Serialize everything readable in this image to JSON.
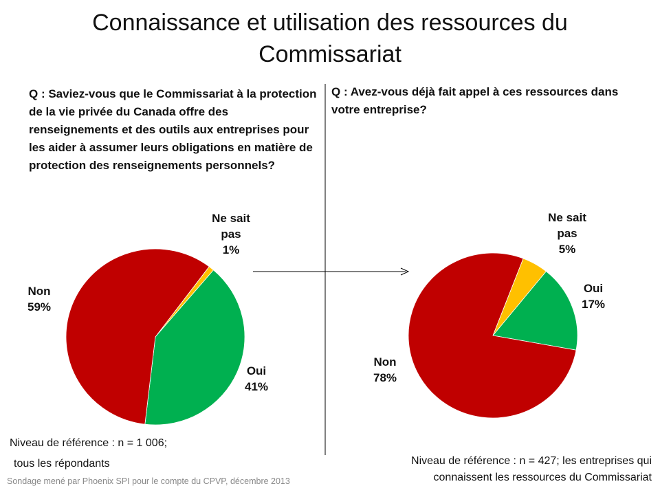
{
  "title": "Connaissance et utilisation des ressources du Commissariat",
  "source": "Sondage mené par Phoenix SPI pour le compte du CPVP, décembre 2013",
  "chart_data": [
    {
      "type": "pie",
      "title": "Q : Saviez-vous que le Commissariat à la protection de la vie privée du Canada offre des renseignements et des outils aux entreprises pour les aider à assumer leurs obligations en matière de protection des renseignements personnels?",
      "categories": [
        "Ne sait pas",
        "Oui",
        "Non"
      ],
      "values": [
        1,
        41,
        59
      ],
      "value_labels": [
        "1%",
        "41%",
        "59%"
      ],
      "colors": [
        "#ffc000",
        "#00b050",
        "#c00000"
      ],
      "notes": [
        "Niveau de référence  : n = 1 006;",
        "tous les répondants"
      ]
    },
    {
      "type": "pie",
      "title": "Q : Avez-vous déjà fait appel à ces ressources dans votre entreprise?",
      "categories": [
        "Ne sait pas",
        "Oui",
        "Non"
      ],
      "values": [
        5,
        17,
        78
      ],
      "value_labels": [
        "5%",
        "17%",
        "78%"
      ],
      "colors": [
        "#ffc000",
        "#00b050",
        "#c00000"
      ],
      "notes": [
        "Niveau de référence  : n = 427; les entreprises  qui",
        "connaissent  les ressources  du Commissariat"
      ]
    }
  ]
}
